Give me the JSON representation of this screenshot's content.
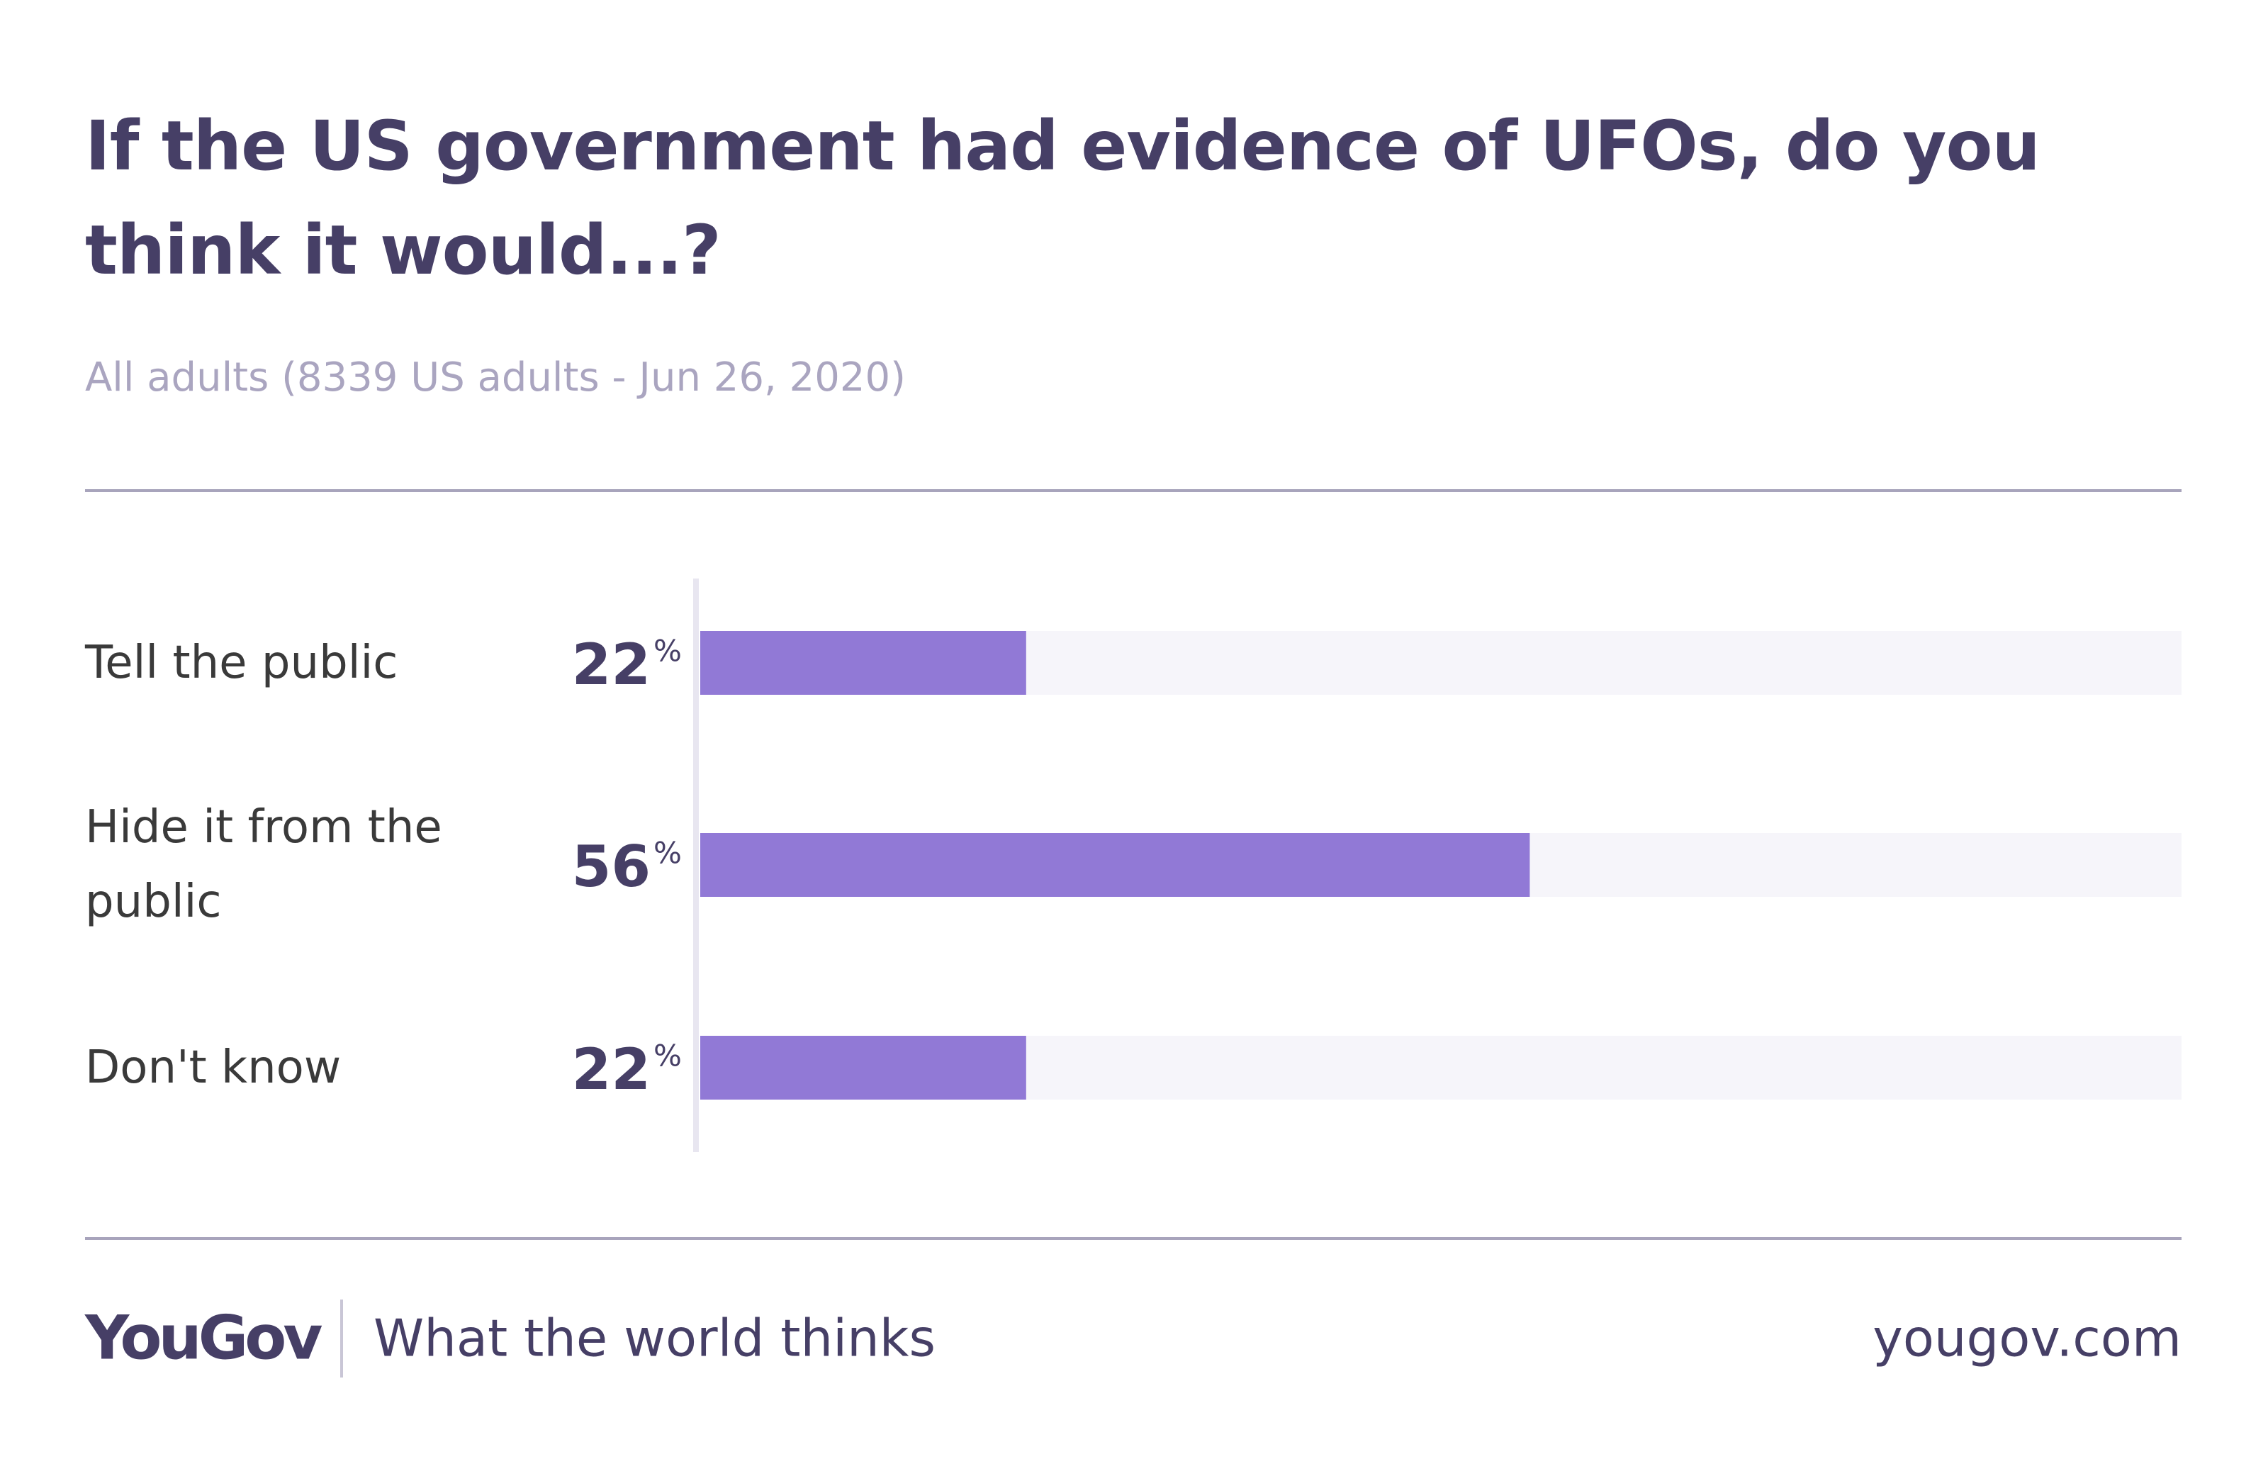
{
  "chart_data": {
    "type": "bar",
    "orientation": "horizontal",
    "title": "If the US government had evidence of UFOs, do you think it would...?",
    "subtitle": "All adults (8339 US adults - Jun 26, 2020)",
    "categories": [
      "Tell the public",
      "Hide it from the public",
      "Don't know"
    ],
    "values": [
      22,
      56,
      22
    ],
    "unit": "%",
    "color": "#9179d6",
    "xlim": [
      0,
      100
    ]
  },
  "footer": {
    "logo": "YouGov",
    "tagline": "What the world thinks",
    "url": "yougov.com"
  }
}
